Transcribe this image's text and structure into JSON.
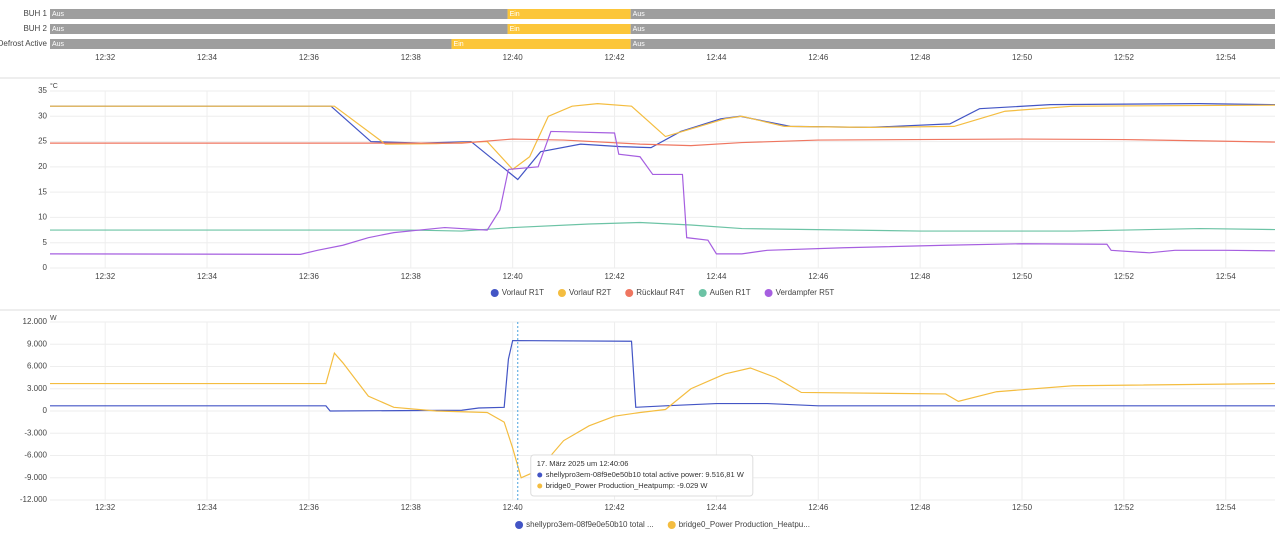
{
  "chart_data": [
    {
      "type": "timeline",
      "xlim": [
        "12:30:55",
        "12:54:58"
      ],
      "xticks": [
        "12:32",
        "12:34",
        "12:36",
        "12:38",
        "12:40",
        "12:42",
        "12:44",
        "12:46",
        "12:48",
        "12:50",
        "12:52",
        "12:54"
      ],
      "state_colors": {
        "Aus": "#9e9e9e",
        "Ein": "#fcc63a"
      },
      "rows": [
        {
          "name": "BUH 1",
          "segments": [
            {
              "state": "Aus",
              "start": "12:30:55",
              "end": "12:39:54"
            },
            {
              "state": "Ein",
              "start": "12:39:54",
              "end": "12:42:19"
            },
            {
              "state": "Aus",
              "start": "12:42:19",
              "end": "12:54:58"
            }
          ]
        },
        {
          "name": "BUH 2",
          "segments": [
            {
              "state": "Aus",
              "start": "12:30:55",
              "end": "12:39:54"
            },
            {
              "state": "Ein",
              "start": "12:39:54",
              "end": "12:42:19"
            },
            {
              "state": "Aus",
              "start": "12:42:19",
              "end": "12:54:58"
            }
          ]
        },
        {
          "name": "Defrost Active",
          "segments": [
            {
              "state": "Aus",
              "start": "12:30:55",
              "end": "12:38:48"
            },
            {
              "state": "Ein",
              "start": "12:38:48",
              "end": "12:42:19"
            },
            {
              "state": "Aus",
              "start": "12:42:19",
              "end": "12:54:58"
            }
          ]
        }
      ]
    },
    {
      "type": "line",
      "y_label": "°C",
      "xlim": [
        "12:30:55",
        "12:54:58"
      ],
      "xticks": [
        "12:32",
        "12:34",
        "12:36",
        "12:38",
        "12:40",
        "12:42",
        "12:44",
        "12:46",
        "12:48",
        "12:50",
        "12:52",
        "12:54"
      ],
      "ylim": [
        0,
        35
      ],
      "yticks": [
        0,
        5,
        10,
        15,
        20,
        25,
        30,
        35
      ],
      "grid": true,
      "series": [
        {
          "name": "Vorlauf R1T",
          "color": "#4355c5",
          "x": [
            "12:30:55",
            "12:36:26",
            "12:37:13",
            "12:38:12",
            "12:39:11",
            "12:40:06",
            "12:40:33",
            "12:41:20",
            "12:42:07",
            "12:42:43",
            "12:43:18",
            "12:44:05",
            "12:44:28",
            "12:45:27",
            "12:47:01",
            "12:48:35",
            "12:49:10",
            "12:50:33",
            "12:53:29",
            "12:54:58"
          ],
          "values": [
            32,
            32,
            25,
            24.7,
            25,
            17.5,
            23,
            24.5,
            24,
            23.8,
            27,
            29.5,
            30,
            28,
            27.8,
            28.5,
            31.5,
            32.3,
            32.5,
            32.3
          ]
        },
        {
          "name": "Vorlauf R2T",
          "color": "#f4bd40",
          "x": [
            "12:30:55",
            "12:36:30",
            "12:37:30",
            "12:38:30",
            "12:39:30",
            "12:40:00",
            "12:40:20",
            "12:40:42",
            "12:41:10",
            "12:41:40",
            "12:42:20",
            "12:42:40",
            "12:43:00",
            "12:43:30",
            "12:44:10",
            "12:44:30",
            "12:45:20",
            "12:47:00",
            "12:48:40",
            "12:49:40",
            "12:51:00",
            "12:54:58"
          ],
          "values": [
            32,
            32,
            24.5,
            24.6,
            25,
            19.5,
            22,
            30,
            32,
            32.5,
            32,
            29,
            26,
            27.5,
            29.5,
            30,
            28,
            27.8,
            28,
            31,
            32,
            32.2
          ]
        },
        {
          "name": "Rücklauf R4T",
          "color": "#ef7660",
          "x": [
            "12:30:55",
            "12:39:00",
            "12:40:00",
            "12:41:00",
            "12:42:30",
            "12:43:30",
            "12:44:30",
            "12:46:00",
            "12:50:00",
            "12:52:00",
            "12:54:58"
          ],
          "values": [
            24.7,
            24.7,
            25.5,
            25.3,
            24.5,
            24.2,
            24.8,
            25.3,
            25.5,
            25.4,
            24.9
          ]
        },
        {
          "name": "Außen R1T",
          "color": "#6cc3a5",
          "x": [
            "12:30:55",
            "12:38:00",
            "12:39:00",
            "12:40:00",
            "12:41:30",
            "12:42:30",
            "12:43:30",
            "12:44:30",
            "12:48:00",
            "12:51:00",
            "12:53:30",
            "12:54:58"
          ],
          "values": [
            7.5,
            7.5,
            7.3,
            8,
            8.7,
            9,
            8.5,
            7.8,
            7.3,
            7.3,
            7.8,
            7.6
          ]
        },
        {
          "name": "Verdampfer R5T",
          "color": "#a65fe0",
          "x": [
            "12:30:55",
            "12:35:50",
            "12:36:10",
            "12:36:40",
            "12:37:10",
            "12:37:40",
            "12:38:10",
            "12:38:40",
            "12:39:30",
            "12:39:45",
            "12:39:55",
            "12:40:30",
            "12:40:45",
            "12:42:00",
            "12:42:05",
            "12:42:30",
            "12:42:45",
            "12:43:20",
            "12:43:25",
            "12:43:50",
            "12:44:00",
            "12:44:30",
            "12:45:00",
            "12:46:30",
            "12:48:30",
            "12:50:00",
            "12:51:40",
            "12:51:45",
            "12:52:30",
            "12:53:00",
            "12:54:00",
            "12:54:58"
          ],
          "values": [
            2.8,
            2.7,
            3.5,
            4.5,
            6,
            7,
            7.5,
            8,
            7.5,
            11.5,
            19.5,
            20,
            27,
            26.7,
            22.5,
            22,
            18.5,
            18.5,
            6,
            5.5,
            2.8,
            2.8,
            3.5,
            4,
            4.5,
            4.8,
            4.7,
            3.5,
            3,
            3.5,
            3.5,
            3.4
          ]
        }
      ]
    },
    {
      "type": "line",
      "y_label": "W",
      "xlim": [
        "12:30:55",
        "12:54:58"
      ],
      "xticks": [
        "12:32",
        "12:34",
        "12:36",
        "12:38",
        "12:40",
        "12:42",
        "12:44",
        "12:46",
        "12:48",
        "12:50",
        "12:52",
        "12:54"
      ],
      "ylim": [
        -12000,
        12000
      ],
      "yticks": [
        {
          "value": -12000,
          "label": "-12.000"
        },
        {
          "value": -9000,
          "label": "-9.000"
        },
        {
          "value": -6000,
          "label": "-6.000"
        },
        {
          "value": -3000,
          "label": "-3.000"
        },
        0,
        {
          "value": 3000,
          "label": "3.000"
        },
        {
          "value": 6000,
          "label": "6.000"
        },
        {
          "value": 9000,
          "label": "9.000"
        },
        {
          "value": 12000,
          "label": "12.000"
        }
      ],
      "grid": true,
      "series": [
        {
          "name": "shellypro3em-08f9e0e50b10 total ...",
          "color": "#4355c5",
          "x": [
            "12:30:55",
            "12:36:20",
            "12:36:25",
            "12:39:00",
            "12:39:20",
            "12:39:50",
            "12:39:55",
            "12:40:00",
            "12:42:20",
            "12:42:25",
            "12:43:00",
            "12:44:00",
            "12:45:00",
            "12:46:00",
            "12:54:58"
          ],
          "values": [
            700,
            700,
            0,
            100,
            400,
            500,
            7000,
            9500,
            9400,
            500,
            700,
            1000,
            1000,
            700,
            700
          ]
        },
        {
          "name": "bridge0_Power Production_Heatpu...",
          "color": "#f4bd40",
          "x": [
            "12:30:55",
            "12:36:20",
            "12:36:30",
            "12:36:40",
            "12:37:10",
            "12:37:40",
            "12:38:30",
            "12:39:30",
            "12:39:50",
            "12:40:00",
            "12:40:10",
            "12:40:30",
            "12:41:00",
            "12:41:30",
            "12:42:00",
            "12:42:30",
            "12:43:00",
            "12:43:30",
            "12:44:10",
            "12:44:40",
            "12:45:10",
            "12:45:40",
            "12:48:30",
            "12:48:45",
            "12:49:30",
            "12:51:00",
            "12:54:58"
          ],
          "values": [
            3700,
            3700,
            7800,
            6500,
            2000,
            500,
            0,
            -200,
            -1500,
            -5000,
            -9000,
            -8000,
            -4000,
            -2000,
            -700,
            -200,
            200,
            3000,
            5000,
            5800,
            4500,
            2500,
            2300,
            1300,
            2600,
            3400,
            3700
          ]
        }
      ],
      "tooltip": {
        "x": "12:40:06",
        "title": "17. März 2025 um 12:40:06",
        "lines": [
          "shellypro3em-08f9e0e50b10 total active power: 9.516,81 W",
          "bridge0_Power Production_Heatpump: -9.029 W"
        ]
      }
    }
  ]
}
